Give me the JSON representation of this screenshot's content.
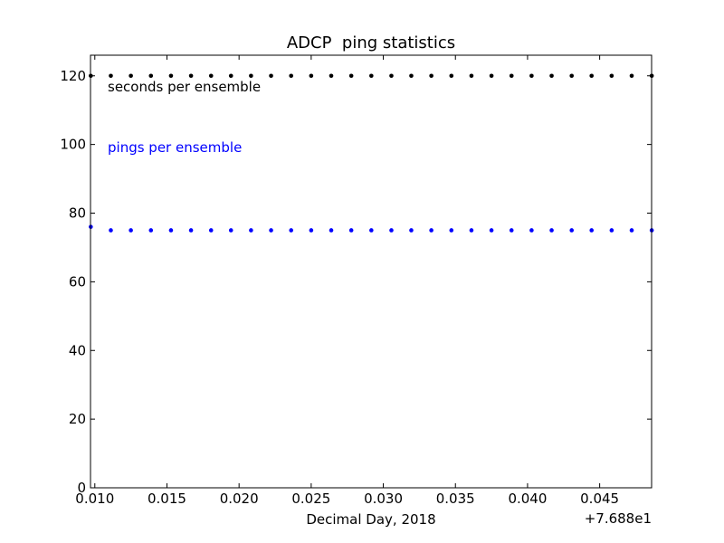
{
  "chart_data": {
    "type": "scatter",
    "title": "ADCP  ping statistics",
    "xlabel": "Decimal Day, 2018",
    "ylabel": "",
    "x_offset_label": "+7.688e1",
    "xlim": [
      76.8897,
      76.9286
    ],
    "ylim": [
      0,
      126
    ],
    "x_tick_values": [
      76.89,
      76.895,
      76.9,
      76.905,
      76.91,
      76.915,
      76.92,
      76.925,
      76.93
    ],
    "x_tick_labels": [
      "0.010",
      "0.015",
      "0.020",
      "0.025",
      "0.030",
      "0.035",
      "0.040",
      "0.045"
    ],
    "y_ticks": [
      0,
      20,
      40,
      60,
      80,
      100,
      120
    ],
    "y_tick_labels": [
      "0",
      "20",
      "40",
      "60",
      "80",
      "100",
      "120"
    ],
    "grid": false,
    "legend": "none",
    "x": [
      76.88972,
      76.89111,
      76.8925,
      76.89389,
      76.89528,
      76.89667,
      76.89806,
      76.89944,
      76.90083,
      76.90222,
      76.90361,
      76.905,
      76.90639,
      76.90778,
      76.90917,
      76.91056,
      76.91194,
      76.91333,
      76.91472,
      76.91611,
      76.9175,
      76.91889,
      76.92028,
      76.92167,
      76.92306,
      76.92444,
      76.92583,
      76.92722,
      76.92861
    ],
    "series": [
      {
        "name": "seconds per ensemble",
        "color": "#000000",
        "values": [
          120,
          120,
          120,
          120,
          120,
          120,
          120,
          120,
          120,
          120,
          120,
          120,
          120,
          120,
          120,
          120,
          120,
          120,
          120,
          120,
          120,
          120,
          120,
          120,
          120,
          120,
          120,
          120,
          120
        ]
      },
      {
        "name": "pings per ensemble",
        "color": "#0000ff",
        "values": [
          76,
          75,
          75,
          75,
          75,
          75,
          75,
          75,
          75,
          75,
          75,
          75,
          75,
          75,
          75,
          75,
          75,
          75,
          75,
          75,
          75,
          75,
          75,
          75,
          75,
          75,
          75,
          75,
          75
        ]
      }
    ],
    "annotations": [
      {
        "text": "seconds per ensemble",
        "color": "#000000"
      },
      {
        "text": "pings per ensemble",
        "color": "#0000ff"
      }
    ]
  }
}
